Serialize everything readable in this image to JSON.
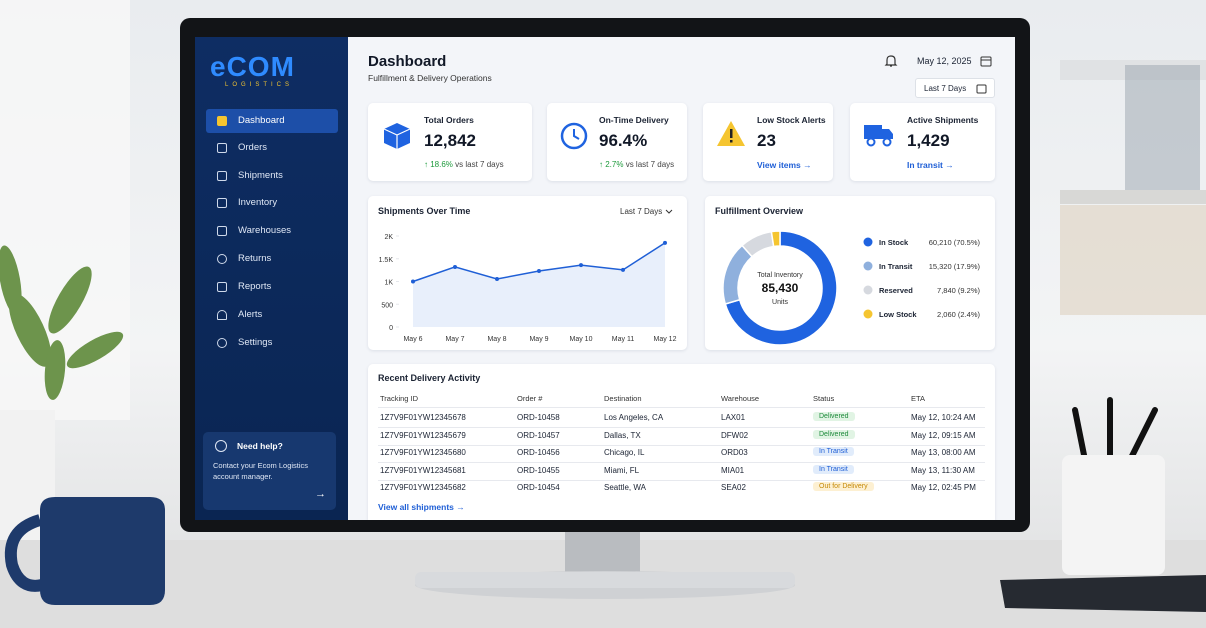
{
  "brand": "eCOM",
  "tagline": "LOGISTICS",
  "nav": [
    "Dashboard",
    "Orders",
    "Shipments",
    "Inventory",
    "Warehouses",
    "Returns",
    "Reports",
    "Alerts",
    "Settings"
  ],
  "help": {
    "title": "Need help?",
    "text": "Contact your Ecom Logistics account manager."
  },
  "header": {
    "title": "Dashboard",
    "subtitle": "Fulfillment & Delivery Operations",
    "date": "May 12, 2025",
    "range": "Last 7 Days"
  },
  "kpis": [
    {
      "title": "Total Orders",
      "value": "12,842",
      "change": "18.6%",
      "note": "vs last 7 days"
    },
    {
      "title": "On-Time Delivery",
      "value": "96.4%",
      "change": "2.7%",
      "note": "vs last 7 days"
    },
    {
      "title": "Low Stock Alerts",
      "value": "23",
      "link": "View items"
    },
    {
      "title": "Active Shipments",
      "value": "1,429",
      "link": "In transit"
    }
  ],
  "shipments_chart": {
    "type": "line",
    "title": "Shipments Over Time",
    "range": "Last 7 Days",
    "categories": [
      "May 6",
      "May 7",
      "May 8",
      "May 9",
      "May 10",
      "May 11",
      "May 12"
    ],
    "values": [
      1000,
      1320,
      1055,
      1230,
      1360,
      1255,
      1850
    ],
    "color": "#1f5fd6",
    "ylim": [
      0,
      2000
    ],
    "yticks": [
      0,
      500,
      {
        "value": 1000,
        "label": "1K"
      },
      {
        "value": 1500,
        "label": "1.5K"
      },
      {
        "value": 2000,
        "label": "2K"
      }
    ],
    "grid": false
  },
  "fulfillment": {
    "type": "donut",
    "title": "Fulfillment Overview",
    "center_label": "Total Inventory",
    "total": "85,430",
    "unit": "Units",
    "categories": [
      "In Stock",
      "In Transit",
      "Reserved",
      "Low Stock"
    ],
    "values": [
      60210,
      15320,
      7840,
      2060
    ],
    "value_labels": [
      "60,210 (70.5%)",
      "15,320 (17.9%)",
      "7,840 (9.2%)",
      "2,060 (2.4%)"
    ],
    "colors": [
      "#1f63e0",
      "#8fb0dd",
      "#d6d9df",
      "#f5c530"
    ]
  },
  "table": {
    "title": "Recent Delivery Activity",
    "columns": [
      "Tracking ID",
      "Order #",
      "Destination",
      "Warehouse",
      "Status",
      "ETA"
    ],
    "rows": [
      [
        "1Z7V9F01YW12345678",
        "ORD-10458",
        "Los Angeles, CA",
        "LAX01",
        "Delivered",
        "May 12, 10:24 AM"
      ],
      [
        "1Z7V9F01YW12345679",
        "ORD-10457",
        "Dallas, TX",
        "DFW02",
        "Delivered",
        "May 12, 09:15 AM"
      ],
      [
        "1Z7V9F01YW12345680",
        "ORD-10456",
        "Chicago, IL",
        "ORD03",
        "In Transit",
        "May 13, 08:00 AM"
      ],
      [
        "1Z7V9F01YW12345681",
        "ORD-10455",
        "Miami, FL",
        "MIA01",
        "In Transit",
        "May 13, 11:30 AM"
      ],
      [
        "1Z7V9F01YW12345682",
        "ORD-10454",
        "Seattle, WA",
        "SEA02",
        "Out for Delivery",
        "May 12, 02:45 PM"
      ]
    ],
    "link": "View all shipments"
  }
}
